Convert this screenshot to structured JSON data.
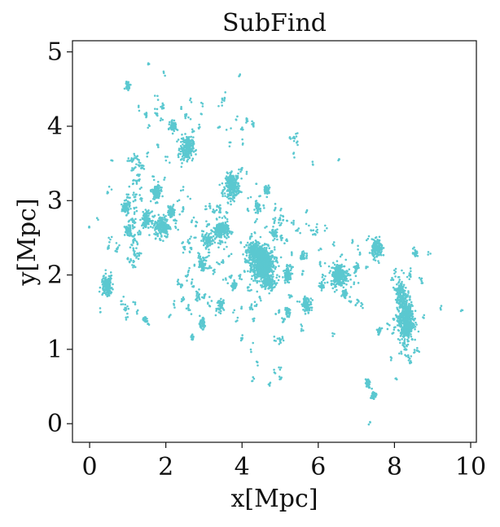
{
  "chart_data": {
    "type": "scatter",
    "title": "SubFind",
    "xlabel": "x[Mpc]",
    "ylabel": "y[Mpc]",
    "xlim": [
      -0.45,
      10.15
    ],
    "ylim": [
      -0.25,
      5.15
    ],
    "xticks": [
      0,
      2,
      4,
      6,
      8,
      10
    ],
    "yticks": [
      0,
      1,
      2,
      3,
      4,
      5
    ],
    "xtick_labels": [
      "0",
      "2",
      "4",
      "6",
      "8",
      "10"
    ],
    "ytick_labels": [
      "0",
      "1",
      "2",
      "3",
      "4",
      "5"
    ],
    "grid": false,
    "color": "#5bc8d0",
    "series": [
      {
        "clumps": [
          [
            4.55,
            2.15,
            0.3,
            0.22,
            700
          ],
          [
            4.3,
            2.3,
            0.18,
            0.14,
            200
          ],
          [
            3.75,
            3.2,
            0.18,
            0.16,
            260
          ],
          [
            3.45,
            2.6,
            0.2,
            0.13,
            200
          ],
          [
            2.55,
            3.7,
            0.17,
            0.15,
            220
          ],
          [
            1.9,
            2.65,
            0.2,
            0.15,
            200
          ],
          [
            6.55,
            2.0,
            0.22,
            0.15,
            260
          ],
          [
            8.3,
            1.4,
            0.2,
            0.32,
            500
          ],
          [
            8.15,
            1.75,
            0.12,
            0.18,
            140
          ],
          [
            7.55,
            2.35,
            0.14,
            0.12,
            160
          ],
          [
            0.45,
            1.85,
            0.14,
            0.13,
            170
          ],
          [
            1.5,
            2.75,
            0.12,
            0.1,
            110
          ],
          [
            1.75,
            3.1,
            0.12,
            0.11,
            110
          ],
          [
            2.15,
            2.85,
            0.1,
            0.08,
            80
          ],
          [
            2.2,
            4.0,
            0.09,
            0.07,
            70
          ],
          [
            0.95,
            2.9,
            0.1,
            0.08,
            80
          ],
          [
            1.0,
            2.6,
            0.08,
            0.07,
            60
          ],
          [
            3.1,
            2.45,
            0.1,
            0.09,
            80
          ],
          [
            2.95,
            2.15,
            0.09,
            0.08,
            70
          ],
          [
            5.2,
            2.0,
            0.1,
            0.09,
            80
          ],
          [
            5.7,
            1.6,
            0.12,
            0.09,
            90
          ],
          [
            4.7,
            1.9,
            0.15,
            0.1,
            120
          ],
          [
            7.3,
            0.55,
            0.06,
            0.06,
            40
          ],
          [
            7.45,
            0.38,
            0.07,
            0.06,
            40
          ],
          [
            7.6,
            1.25,
            0.06,
            0.05,
            30
          ],
          [
            2.95,
            1.35,
            0.08,
            0.07,
            50
          ],
          [
            4.4,
            2.9,
            0.08,
            0.07,
            50
          ],
          [
            5.2,
            1.5,
            0.06,
            0.05,
            30
          ],
          [
            7.0,
            2.1,
            0.06,
            0.06,
            35
          ],
          [
            3.45,
            1.6,
            0.08,
            0.07,
            45
          ],
          [
            1.0,
            4.55,
            0.07,
            0.05,
            35
          ],
          [
            2.7,
            1.15,
            0.04,
            0.04,
            20
          ],
          [
            6.7,
            1.75,
            0.07,
            0.06,
            40
          ],
          [
            8.55,
            2.3,
            0.06,
            0.05,
            30
          ],
          [
            4.65,
            3.15,
            0.07,
            0.06,
            40
          ],
          [
            5.6,
            2.25,
            0.06,
            0.05,
            35
          ],
          [
            6.1,
            1.85,
            0.06,
            0.05,
            30
          ],
          [
            1.45,
            1.4,
            0.06,
            0.04,
            25
          ],
          [
            3.8,
            1.85,
            0.07,
            0.06,
            40
          ],
          [
            4.85,
            2.55,
            0.08,
            0.06,
            45
          ]
        ],
        "bands": [
          [
            1.0,
            1.35,
            2.2,
            3.6,
            160
          ],
          [
            2.2,
            3.4,
            1.5,
            3.2,
            220
          ],
          [
            3.4,
            4.6,
            1.4,
            3.4,
            150
          ],
          [
            4.6,
            6.0,
            1.1,
            3.0,
            150
          ],
          [
            0.2,
            1.2,
            1.3,
            3.3,
            70
          ],
          [
            1.2,
            3.0,
            3.2,
            4.6,
            90
          ],
          [
            3.0,
            5.5,
            3.4,
            4.4,
            50
          ],
          [
            6.0,
            7.2,
            1.5,
            2.5,
            40
          ],
          [
            7.8,
            8.7,
            0.8,
            2.1,
            90
          ],
          [
            4.0,
            5.5,
            0.5,
            1.2,
            25
          ]
        ],
        "points": [
          [
            1.55,
            4.85
          ],
          [
            1.95,
            4.7
          ],
          [
            1.55,
            4.0
          ],
          [
            1.3,
            4.25
          ],
          [
            2.95,
            4.3
          ],
          [
            3.5,
            4.35
          ],
          [
            3.85,
            4.1
          ],
          [
            4.3,
            4.0
          ],
          [
            4.0,
            3.8
          ],
          [
            5.25,
            3.85
          ],
          [
            5.45,
            3.75
          ],
          [
            5.85,
            3.5
          ],
          [
            6.55,
            3.55
          ],
          [
            0.6,
            3.55
          ],
          [
            0.45,
            3.1
          ],
          [
            0.0,
            2.65
          ],
          [
            4.4,
            2.7
          ],
          [
            5.45,
            2.6
          ],
          [
            5.3,
            2.3
          ],
          [
            6.05,
            2.35
          ],
          [
            6.6,
            2.25
          ],
          [
            6.9,
            2.45
          ],
          [
            7.3,
            2.5
          ],
          [
            7.25,
            2.1
          ],
          [
            7.0,
            1.6
          ],
          [
            9.2,
            1.55
          ],
          [
            9.75,
            1.5
          ],
          [
            8.05,
            0.6
          ],
          [
            7.35,
            0.0
          ],
          [
            5.0,
            0.75
          ],
          [
            4.85,
            0.7
          ],
          [
            4.85,
            1.15
          ],
          [
            4.25,
            1.0
          ],
          [
            4.0,
            1.55
          ],
          [
            2.7,
            1.2
          ],
          [
            2.1,
            1.45
          ],
          [
            1.55,
            1.35
          ],
          [
            1.25,
            1.5
          ],
          [
            1.2,
            1.65
          ],
          [
            0.95,
            1.55
          ],
          [
            3.95,
            4.65
          ],
          [
            6.4,
            1.2
          ],
          [
            8.9,
            2.3
          ],
          [
            8.75,
            1.45
          ],
          [
            4.55,
            2.95
          ],
          [
            2.4,
            4.25
          ],
          [
            1.75,
            4.4
          ],
          [
            3.05,
            2.9
          ],
          [
            5.7,
            2.85
          ],
          [
            6.2,
            2.65
          ]
        ]
      }
    ]
  }
}
